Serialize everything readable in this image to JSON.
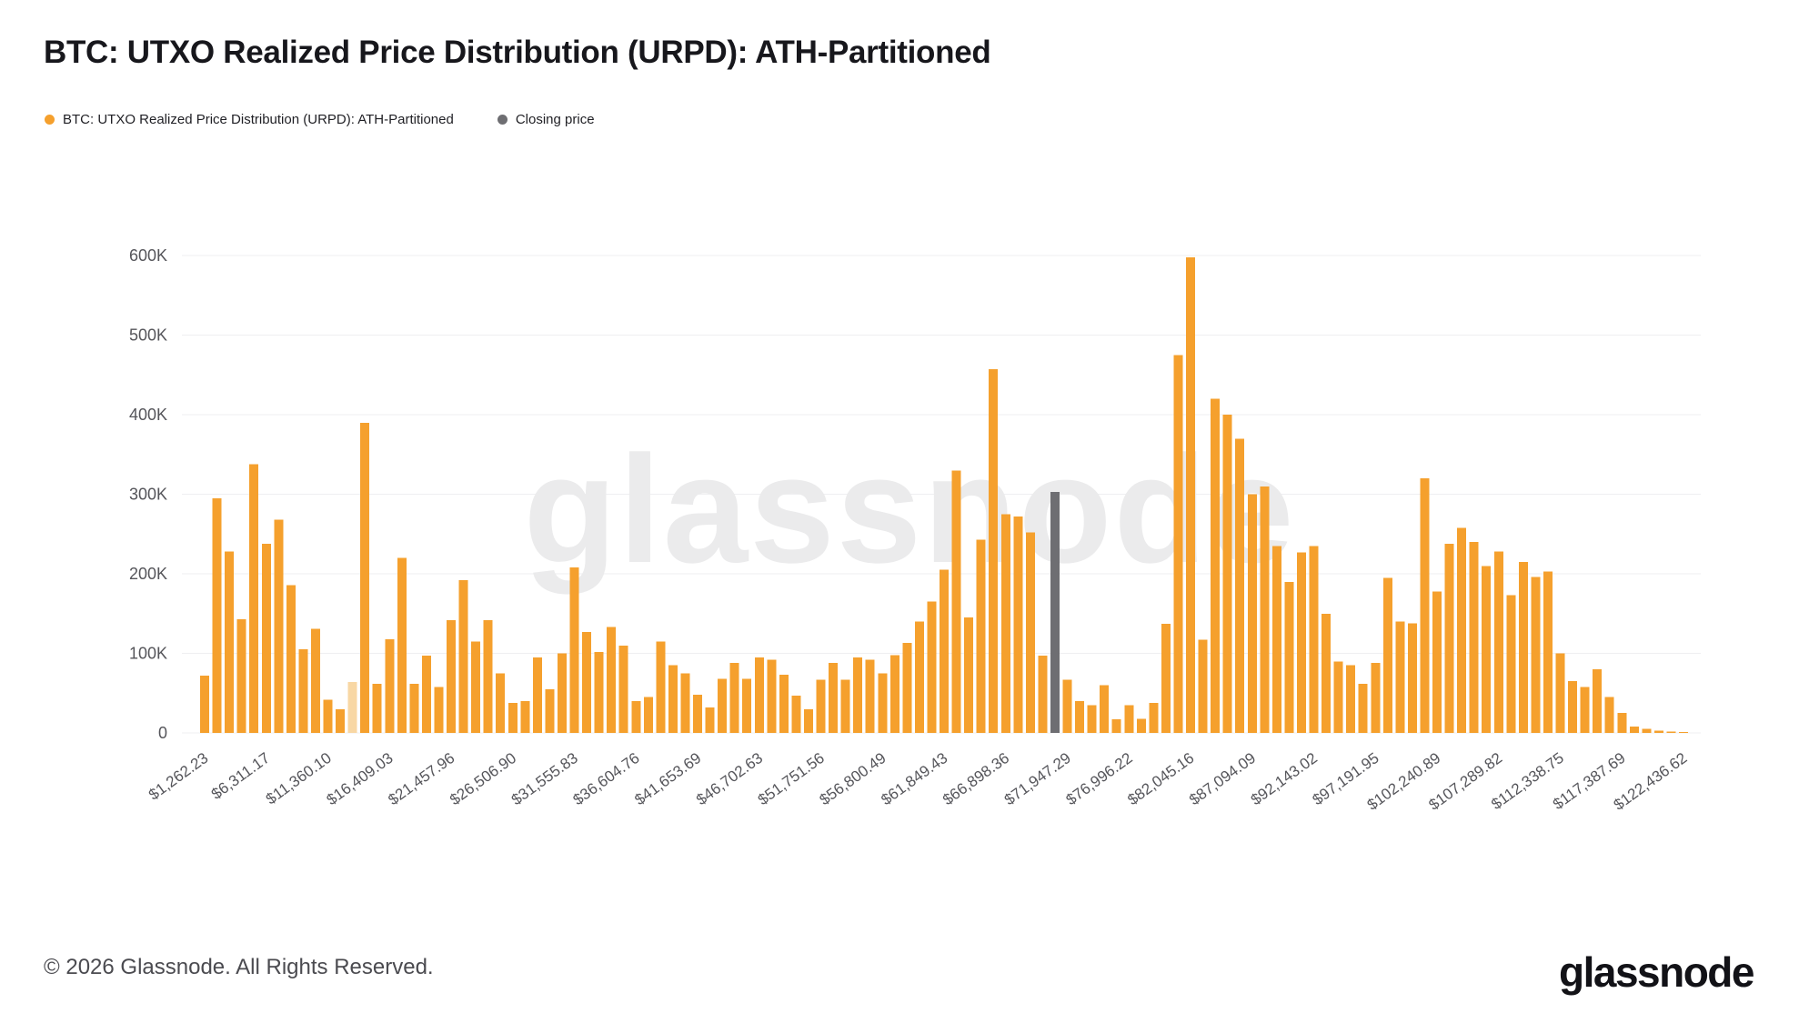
{
  "header": {
    "title": "BTC: UTXO Realized Price Distribution (URPD): ATH-Partitioned"
  },
  "legend": {
    "items": [
      {
        "label": "BTC: UTXO Realized Price Distribution (URPD): ATH-Partitioned",
        "color": "#f5a02d"
      },
      {
        "label": "Closing price",
        "color": "#6e6e72"
      }
    ]
  },
  "footer": {
    "copyright": "© 2026 Glassnode. All Rights Reserved."
  },
  "branding": {
    "watermark": "glassnode",
    "logo": "glassnode"
  },
  "chart_data": {
    "type": "bar",
    "title": "BTC: UTXO Realized Price Distribution (URPD): ATH-Partitioned",
    "legend": [
      "BTC: UTXO Realized Price Distribution (URPD): ATH-Partitioned",
      "Closing price"
    ],
    "legend_position": "top-left",
    "grid": "horizontal-only",
    "ylim": [
      0,
      600000
    ],
    "yticks": [
      {
        "value": 0,
        "label": "0"
      },
      {
        "value": 100000,
        "label": "100K"
      },
      {
        "value": 200000,
        "label": "200K"
      },
      {
        "value": 300000,
        "label": "300K"
      },
      {
        "value": 400000,
        "label": "400K"
      },
      {
        "value": 500000,
        "label": "500K"
      },
      {
        "value": 600000,
        "label": "600K"
      }
    ],
    "x_tick_every": 5,
    "x_tick_labels": [
      "$1,262.23",
      "$6,311.17",
      "$11,360.10",
      "$16,409.03",
      "$21,457.96",
      "$26,506.90",
      "$31,555.83",
      "$36,604.76",
      "$41,653.69",
      "$46,702.63",
      "$51,751.56",
      "$56,800.49",
      "$61,849.43",
      "$66,898.36",
      "$71,947.29",
      "$76,996.22",
      "$82,045.16",
      "$87,094.09",
      "$92,143.02",
      "$97,191.95",
      "$102,240.89",
      "$107,289.82",
      "$112,338.75",
      "$117,387.69",
      "$122,436.62"
    ],
    "bar_color": "#f5a02d",
    "highlight_index": 12,
    "highlight_color": "#f8d7a4",
    "grid_color": "#efeff1",
    "bars": [
      72000,
      295000,
      228000,
      143000,
      338000,
      238000,
      268000,
      186000,
      105000,
      131000,
      42000,
      30000,
      64000,
      390000,
      62000,
      118000,
      220000,
      62000,
      97000,
      58000,
      142000,
      192000,
      115000,
      142000,
      75000,
      38000,
      40000,
      95000,
      55000,
      100000,
      208000,
      127000,
      102000,
      133000,
      110000,
      40000,
      45000,
      115000,
      85000,
      75000,
      48000,
      32000,
      68000,
      88000,
      68000,
      95000,
      92000,
      73000,
      47000,
      30000,
      67000,
      88000,
      67000,
      95000,
      92000,
      75000,
      98000,
      113000,
      140000,
      165000,
      205000,
      330000,
      145000,
      243000,
      457000,
      275000,
      272000,
      252000,
      97000,
      null,
      67000,
      40000,
      35000,
      60000,
      17000,
      35000,
      18000,
      38000,
      137000,
      475000,
      598000,
      117000,
      420000,
      400000,
      370000,
      300000,
      310000,
      235000,
      190000,
      227000,
      235000,
      150000,
      90000,
      85000,
      62000,
      88000,
      195000,
      140000,
      138000,
      320000,
      178000,
      238000,
      258000,
      240000,
      210000,
      228000,
      173000,
      215000,
      196000,
      203000,
      100000,
      65000,
      58000,
      80000,
      45000,
      25000,
      8000,
      5000,
      3000,
      2000,
      1000
    ],
    "closing_price": {
      "label": "Closing price",
      "index": 69,
      "value": 303000,
      "color": "#6e6e72"
    }
  }
}
